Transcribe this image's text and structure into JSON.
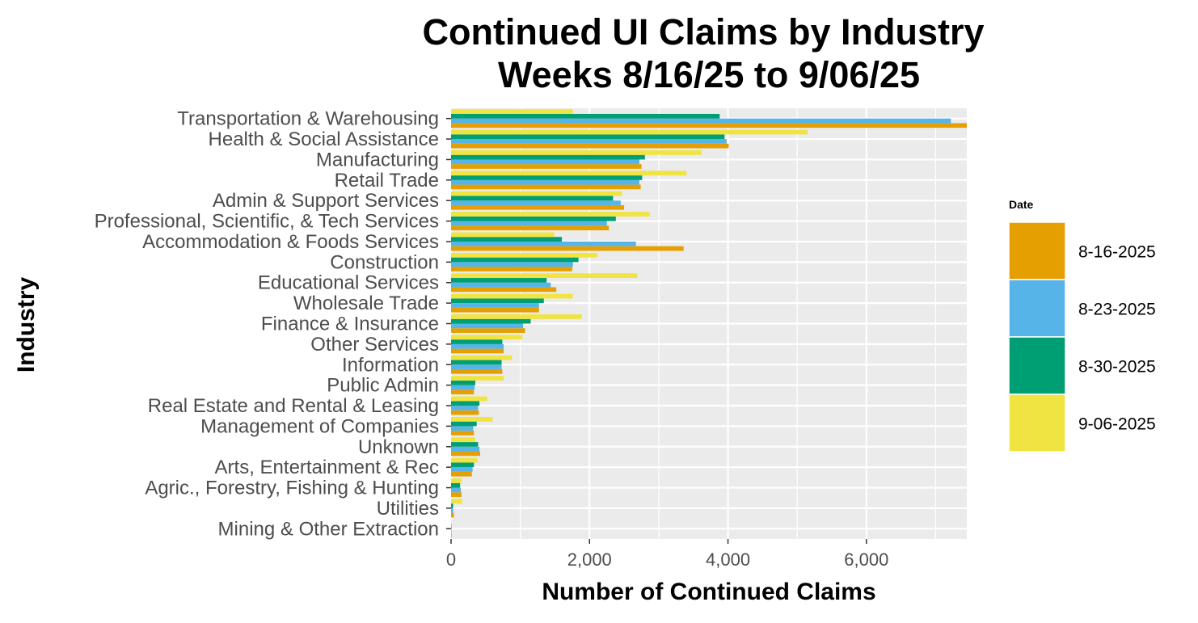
{
  "chart_data": {
    "type": "bar",
    "orientation": "horizontal",
    "title_line1": "Continued UI Claims by Industry",
    "title_line2": "Weeks 8/16/25 to 9/06/25",
    "xlabel": "Number of Continued Claims",
    "ylabel": "Industry",
    "xlim": [
      0,
      7450
    ],
    "x_ticks": [
      0,
      2000,
      4000,
      6000
    ],
    "x_tick_labels": [
      "0",
      "2,000",
      "4,000",
      "6,000"
    ],
    "grid": true,
    "legend_position": "right",
    "legend_title": "Date",
    "categories": [
      "Transportation & Warehousing",
      "Health & Social Assistance",
      "Manufacturing",
      "Retail Trade",
      "Admin & Support Services",
      "Professional, Scientific, & Tech Services",
      "Accommodation & Foods Services",
      "Construction",
      "Educational Services",
      "Wholesale Trade",
      "Finance & Insurance",
      "Other Services",
      "Information",
      "Public Admin",
      "Real Estate and Rental & Leasing",
      "Management of Companies",
      "Unknown",
      "Arts, Entertainment & Rec",
      "Agric., Forestry, Fishing & Hunting",
      "Utilities",
      "Mining & Other Extraction"
    ],
    "series": [
      {
        "name": "8-16-2025",
        "color": "#E69F00",
        "values": [
          7450,
          4010,
          2750,
          2740,
          2500,
          2280,
          3360,
          1750,
          1520,
          1270,
          1070,
          760,
          740,
          330,
          400,
          330,
          420,
          300,
          150,
          40,
          8
        ]
      },
      {
        "name": "8-23-2025",
        "color": "#56B4E9",
        "values": [
          7220,
          3980,
          2720,
          2720,
          2450,
          2250,
          2670,
          1760,
          1440,
          1270,
          1040,
          760,
          730,
          340,
          390,
          320,
          410,
          310,
          140,
          30,
          7
        ]
      },
      {
        "name": "8-30-2025",
        "color": "#009E73",
        "values": [
          3880,
          3950,
          2800,
          2760,
          2340,
          2380,
          1600,
          1840,
          1380,
          1340,
          1150,
          740,
          730,
          350,
          410,
          370,
          390,
          330,
          130,
          30,
          6
        ]
      },
      {
        "name": "9-06-2025",
        "color": "#F0E442",
        "values": [
          1760,
          5150,
          3620,
          3400,
          2470,
          2870,
          1490,
          2110,
          2690,
          1760,
          1890,
          1030,
          880,
          760,
          520,
          600,
          350,
          380,
          150,
          160,
          6
        ]
      }
    ]
  }
}
